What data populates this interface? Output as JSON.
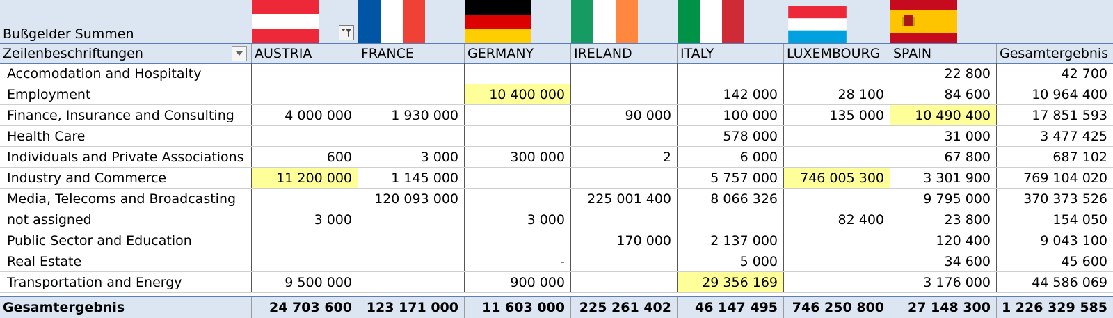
{
  "pivot": {
    "title": "Bußgelder Summen",
    "row_header": "Zeilenbeschriftungen",
    "columns": [
      "AUSTRIA",
      "FRANCE",
      "GERMANY",
      "IRELAND",
      "ITALY",
      "LUXEMBOURG",
      "SPAIN"
    ],
    "total_column": "Gesamtergebnis",
    "flags": [
      "austria-flag",
      "france-flag",
      "germany-flag",
      "ireland-flag",
      "italy-flag",
      "luxembourg-flag",
      "spain-flag"
    ],
    "highlight_color": "#ffff99",
    "header_fill": "#dce6f2",
    "rows": [
      {
        "label": "Accomodation and Hospitalty",
        "values": [
          "",
          "",
          "",
          "",
          "",
          "",
          "22 800"
        ],
        "total": "42 700",
        "highlight": []
      },
      {
        "label": "Employment",
        "values": [
          "",
          "",
          "10 400 000",
          "",
          "142 000",
          "28 100",
          "84 600"
        ],
        "total": "10 964 400",
        "highlight": [
          2
        ]
      },
      {
        "label": "Finance, Insurance and Consulting",
        "values": [
          "4 000 000",
          "1 930 000",
          "",
          "90 000",
          "100 000",
          "135 000",
          "10 490 400"
        ],
        "total": "17 851 593",
        "highlight": [
          6
        ]
      },
      {
        "label": "Health Care",
        "values": [
          "",
          "",
          "",
          "",
          "578 000",
          "",
          "31 000"
        ],
        "total": "3 477 425",
        "highlight": []
      },
      {
        "label": "Individuals and Private Associations",
        "values": [
          "600",
          "3 000",
          "300 000",
          "2",
          "6 000",
          "",
          "67 800"
        ],
        "total": "687 102",
        "highlight": []
      },
      {
        "label": "Industry and Commerce",
        "values": [
          "11 200 000",
          "1 145 000",
          "",
          "",
          "5 757 000",
          "746 005 300",
          "3 301 900"
        ],
        "total": "769 104 020",
        "highlight": [
          0,
          5
        ]
      },
      {
        "label": "Media, Telecoms and Broadcasting",
        "values": [
          "",
          "120 093 000",
          "",
          "225 001 400",
          "8 066 326",
          "",
          "9 795 000"
        ],
        "total": "370 373 526",
        "highlight": []
      },
      {
        "label": "not assigned",
        "values": [
          "3 000",
          "",
          "3 000",
          "",
          "",
          "82 400",
          "23 800"
        ],
        "total": "154 050",
        "highlight": []
      },
      {
        "label": "Public Sector and Education",
        "values": [
          "",
          "",
          "",
          "170 000",
          "2 137 000",
          "",
          "120 400"
        ],
        "total": "9 043 100",
        "highlight": []
      },
      {
        "label": "Real Estate",
        "values": [
          "",
          "",
          "-",
          "",
          "5 000",
          "",
          "34 600"
        ],
        "total": "45 600",
        "highlight": []
      },
      {
        "label": "Transportation and Energy",
        "values": [
          "9 500 000",
          "",
          "900 000",
          "",
          "29 356 169",
          "",
          "3 176 000"
        ],
        "total": "44 586 069",
        "highlight": [
          4
        ]
      }
    ],
    "grand_total": {
      "label": "Gesamtergebnis",
      "values": [
        "24 703 600",
        "123 171 000",
        "11 603 000",
        "225 261 402",
        "46 147 495",
        "746 250 800",
        "27 148 300"
      ],
      "total": "1 226 329 585"
    }
  }
}
